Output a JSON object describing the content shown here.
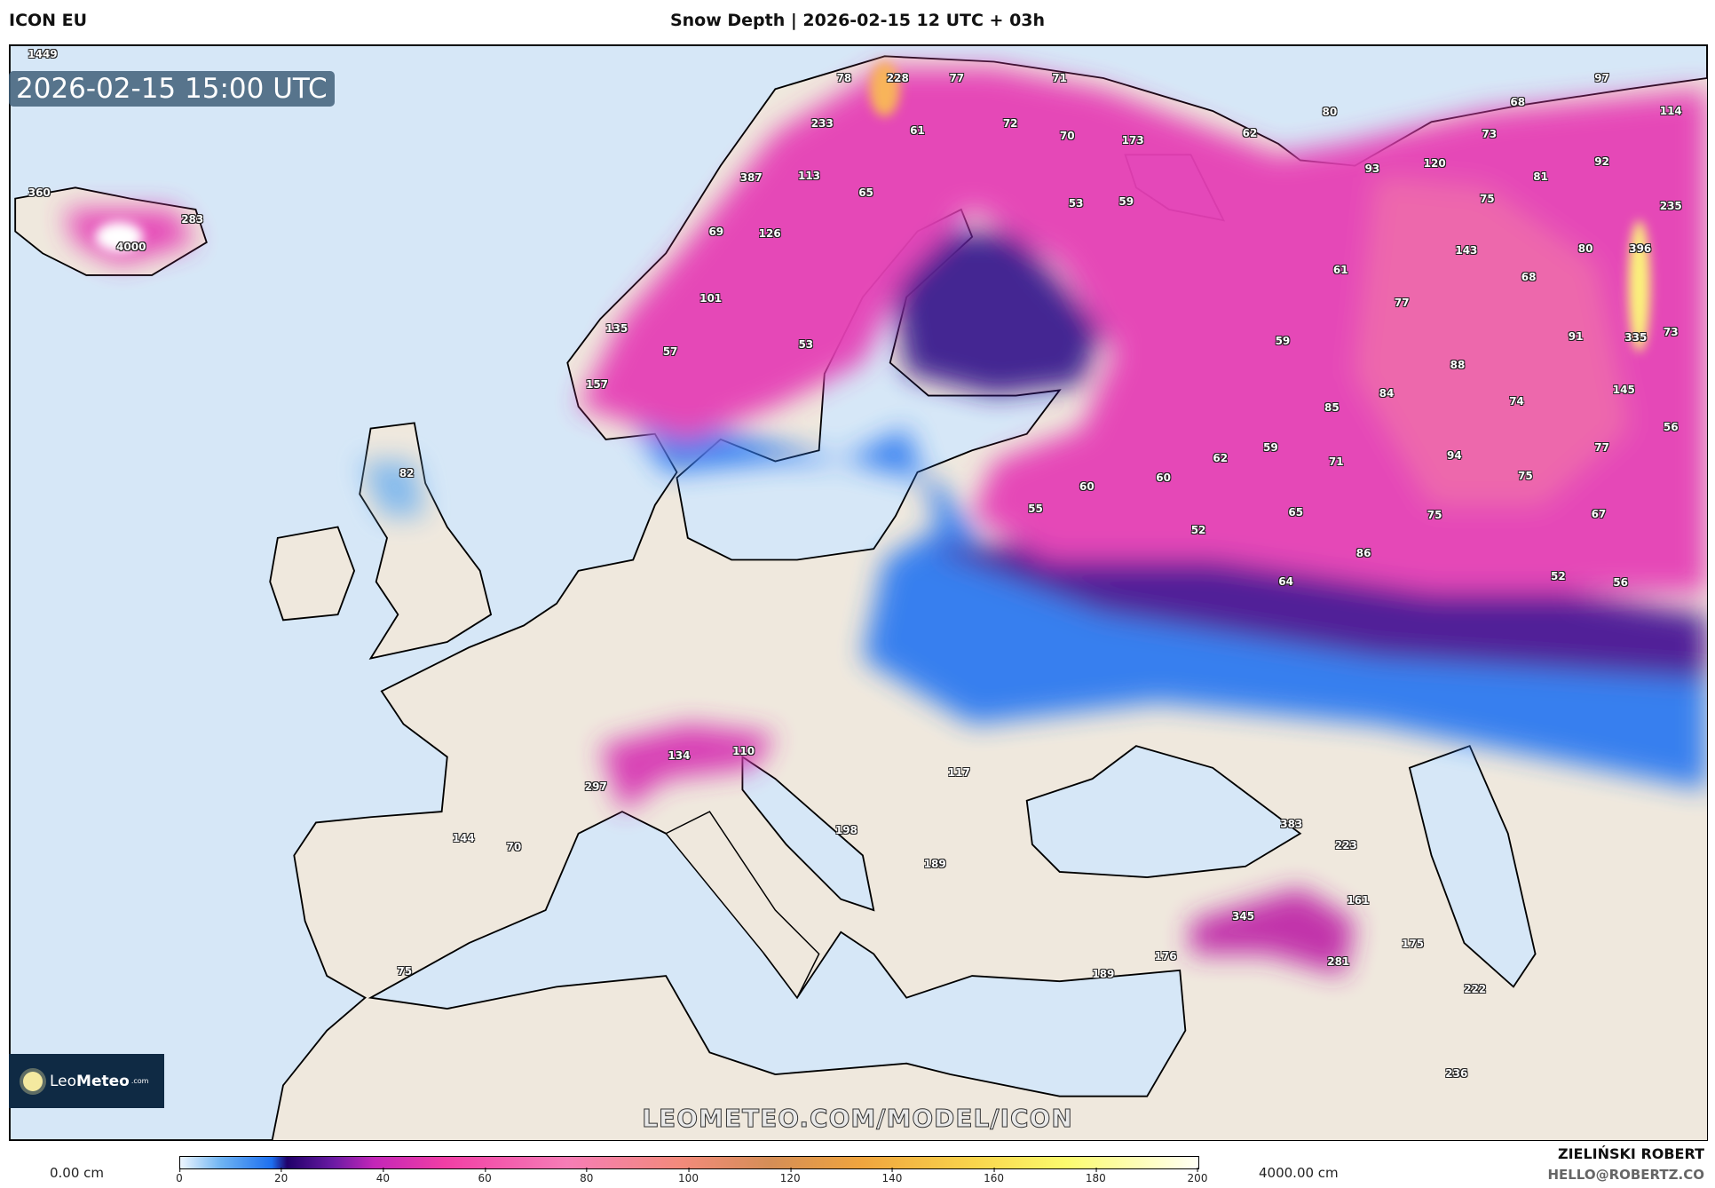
{
  "header": {
    "model": "ICON EU",
    "title": "Snow Depth | 2026-02-15 12 UTC + 03h"
  },
  "map": {
    "valid_time": "2026-02-15 15:00 UTC",
    "watermark": "LEOMETEO.COM/MODEL/ICON",
    "logo": {
      "name_light": "Leo",
      "name_bold": "Meteo",
      "suffix": ".com"
    },
    "colors": {
      "sea": "#d6e7f7",
      "land": "#efe8dd",
      "border": "#000000"
    },
    "point_values": [
      "1449",
      "78",
      "228",
      "77",
      "71",
      "97",
      "68",
      "114",
      "80",
      "233",
      "61",
      "72",
      "70",
      "173",
      "62",
      "73",
      "92",
      "387",
      "113",
      "65",
      "93",
      "120",
      "81",
      "75",
      "235",
      "360",
      "283",
      "4000",
      "69",
      "126",
      "53",
      "59",
      "143",
      "80",
      "396",
      "61",
      "68",
      "77",
      "101",
      "135",
      "57",
      "53",
      "59",
      "91",
      "335",
      "73",
      "88",
      "157",
      "145",
      "84",
      "85",
      "74",
      "56",
      "77",
      "82",
      "62",
      "59",
      "71",
      "94",
      "75",
      "60",
      "60",
      "55",
      "65",
      "75",
      "67",
      "52",
      "86",
      "64",
      "52",
      "56",
      "134",
      "110",
      "117",
      "297",
      "144",
      "70",
      "198",
      "383",
      "223",
      "189",
      "345",
      "161",
      "175",
      "176",
      "281",
      "189",
      "75",
      "222",
      "236"
    ]
  },
  "legend": {
    "min_label": "0.00 cm",
    "max_label": "4000.00 cm",
    "ticks": [
      "0",
      "20",
      "40",
      "60",
      "80",
      "100",
      "120",
      "140",
      "160",
      "180",
      "200"
    ]
  },
  "credits": {
    "author": "ZIELIŃSKI ROBERT",
    "email": "HELLO@ROBERTZ.CO"
  }
}
